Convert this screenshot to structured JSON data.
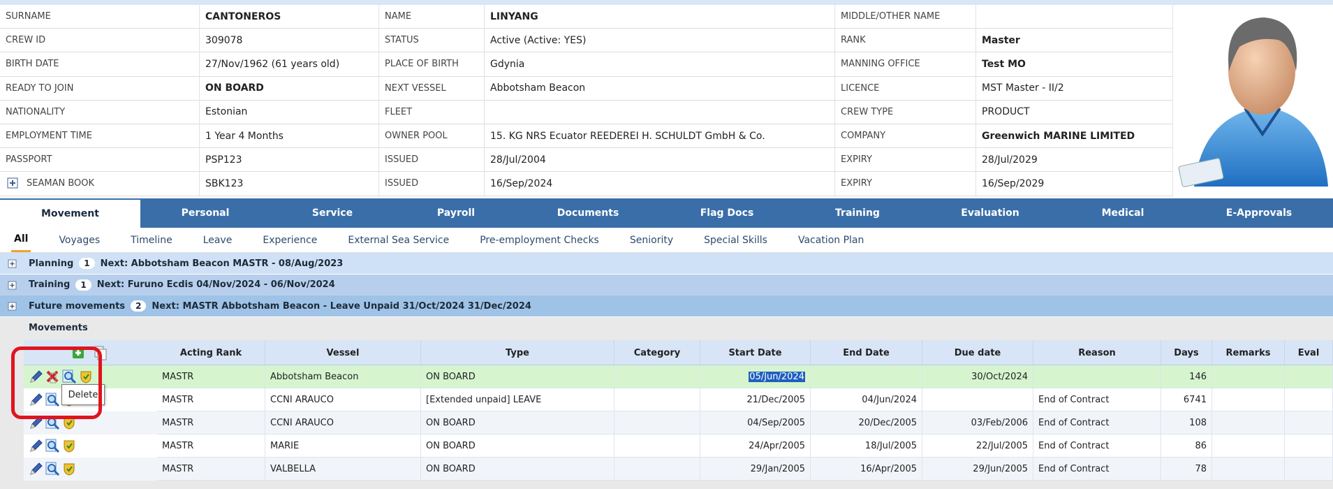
{
  "crew_info": [
    [
      {
        "label": "SURNAME",
        "value": "CANTONEROS",
        "bold": true
      },
      {
        "label": "NAME",
        "value": "LINYANG",
        "bold": true
      },
      {
        "label": "MIDDLE/OTHER NAME"
      }
    ],
    [
      {
        "label": "CREW ID",
        "value": "309078"
      },
      {
        "label": "STATUS",
        "value": "Active (Active: YES)"
      },
      {
        "label": "RANK",
        "value": "Master",
        "bold": true
      }
    ],
    [
      {
        "label": "BIRTH DATE",
        "value": "27/Nov/1962 (61 years old)"
      },
      {
        "label": "PLACE OF BIRTH",
        "value": "Gdynia"
      },
      {
        "label": "MANNING OFFICE",
        "value": "Test MO",
        "bold": true
      }
    ],
    [
      {
        "label": "READY TO JOIN",
        "value": "ON BOARD",
        "bold": true
      },
      {
        "label": "NEXT VESSEL",
        "value": "Abbotsham Beacon"
      },
      {
        "label": "LICENCE",
        "value": "MST Master - II/2"
      }
    ],
    [
      {
        "label": "NATIONALITY",
        "value": "Estonian"
      },
      {
        "label": "FLEET"
      },
      {
        "label": "CREW TYPE",
        "value": "PRODUCT"
      }
    ],
    [
      {
        "label": "EMPLOYMENT TIME",
        "value": "1 Year 4 Months"
      },
      {
        "label": "OWNER POOL",
        "value": "15. KG NRS Ecuator REEDEREI H. SCHULDT GmbH & Co."
      },
      {
        "label": "COMPANY",
        "value": "Greenwich MARINE LIMITED",
        "bold": true
      }
    ],
    [
      {
        "label": "PASSPORT",
        "value": "PSP123"
      },
      {
        "label": "ISSUED",
        "value": "28/Jul/2004"
      },
      {
        "label": "EXPIRY",
        "value": "28/Jul/2029"
      }
    ],
    [
      {
        "label": "SEAMAN BOOK",
        "value": "SBK123",
        "expandable": true
      },
      {
        "label": "ISSUED",
        "value": "16/Sep/2024"
      },
      {
        "label": "EXPIRY",
        "value": "16/Sep/2029"
      }
    ]
  ],
  "tabs": [
    "Movement",
    "Personal",
    "Service",
    "Payroll",
    "Documents",
    "Flag Docs",
    "Training",
    "Evaluation",
    "Medical",
    "E-Approvals"
  ],
  "active_tab": 0,
  "subtabs": [
    "All",
    "Voyages",
    "Timeline",
    "Leave",
    "Experience",
    "External Sea Service",
    "Pre-employment Checks",
    "Seniority",
    "Special Skills",
    "Vacation Plan"
  ],
  "active_subtab": 0,
  "groups": [
    {
      "title": "Planning",
      "count": 1,
      "next": "Next: Abbotsham Beacon MASTR - 08/Aug/2023"
    },
    {
      "title": "Training",
      "count": 1,
      "next": "Next: Furuno Ecdis 04/Nov/2024 - 06/Nov/2024"
    },
    {
      "title": "Future movements",
      "count": 2,
      "next": "Next: MASTR Abbotsham Beacon - Leave Unpaid 31/Oct/2024 31/Dec/2024"
    }
  ],
  "movements": {
    "title": "Movements",
    "columns": [
      "Acting Rank",
      "Vessel",
      "Type",
      "Category",
      "Start Date",
      "End Date",
      "Due date",
      "Reason",
      "Days",
      "Remarks",
      "Eval"
    ],
    "rows": [
      [
        "MASTR",
        "Abbotsham Beacon",
        "ON BOARD",
        null,
        "05/Jun/2024",
        null,
        "30/Oct/2024",
        null,
        146,
        null,
        null
      ],
      [
        "MASTR",
        "CCNI ARAUCO",
        "[Extended unpaid] LEAVE",
        null,
        "21/Dec/2005",
        "04/Jun/2024",
        null,
        "End of Contract",
        6741,
        null,
        null
      ],
      [
        "MASTR",
        "CCNI ARAUCO",
        "ON BOARD",
        null,
        "04/Sep/2005",
        "20/Dec/2005",
        "03/Feb/2006",
        "End of Contract",
        108,
        null,
        null
      ],
      [
        "MASTR",
        "MARIE",
        "ON BOARD",
        null,
        "24/Apr/2005",
        "18/Jul/2005",
        "22/Jul/2005",
        "End of Contract",
        86,
        null,
        null
      ],
      [
        "MASTR",
        "VALBELLA",
        "ON BOARD",
        null,
        "29/Jan/2005",
        "16/Apr/2005",
        "29/Jun/2005",
        "End of Contract",
        78,
        null,
        null
      ]
    ],
    "tooltip": "Delete"
  }
}
